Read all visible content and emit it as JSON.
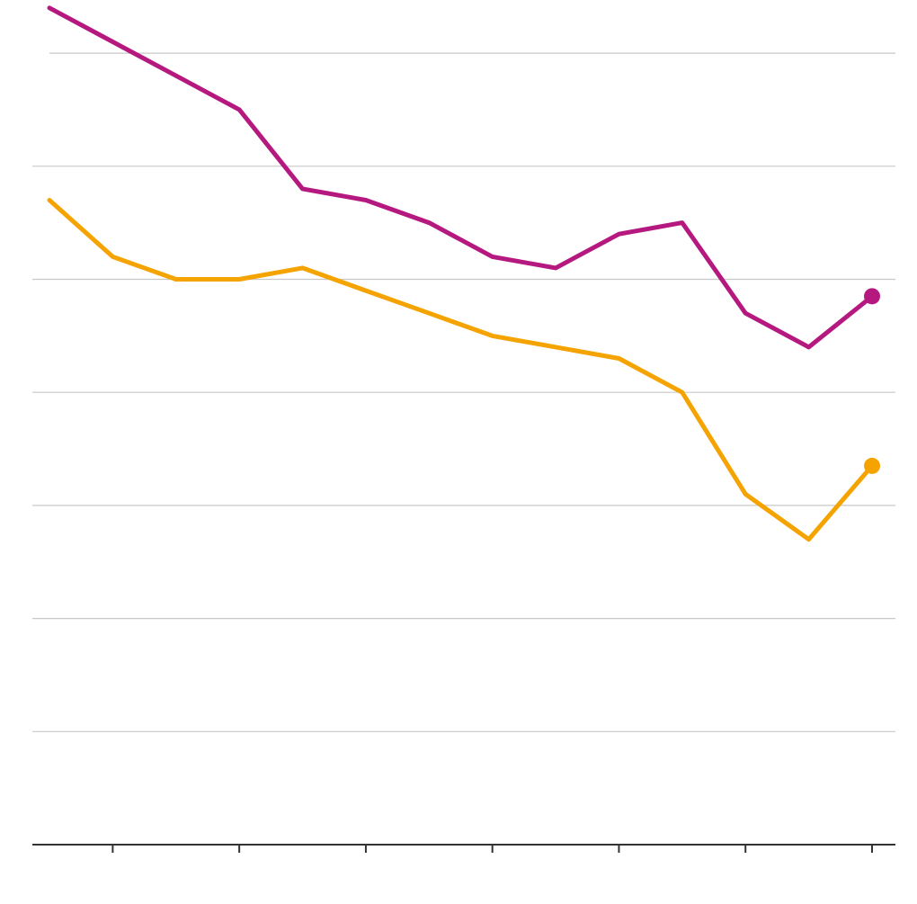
{
  "chart_data": {
    "type": "line",
    "title": "",
    "xlabel": "",
    "ylabel": "",
    "x": [
      0,
      1,
      2,
      3,
      4,
      5,
      6,
      7,
      8,
      9,
      10,
      11,
      12,
      13
    ],
    "ylim": [
      0,
      7
    ],
    "gridlines": [
      1,
      2,
      3,
      4,
      5,
      6,
      7
    ],
    "grid": true,
    "x_ticks": [
      1,
      3,
      5,
      7,
      9,
      11,
      13
    ],
    "series": [
      {
        "color": "#b5197f",
        "values": [
          7.4,
          7.1,
          6.8,
          6.5,
          5.8,
          5.7,
          5.5,
          5.2,
          5.1,
          5.4,
          5.5,
          4.7,
          4.4,
          4.85
        ],
        "end_marker": true
      },
      {
        "color": "#f5a300",
        "values": [
          5.7,
          5.2,
          5.0,
          5.0,
          5.1,
          4.9,
          4.7,
          4.5,
          4.4,
          4.3,
          4.0,
          3.1,
          2.7,
          3.35
        ],
        "end_marker": true
      }
    ]
  }
}
